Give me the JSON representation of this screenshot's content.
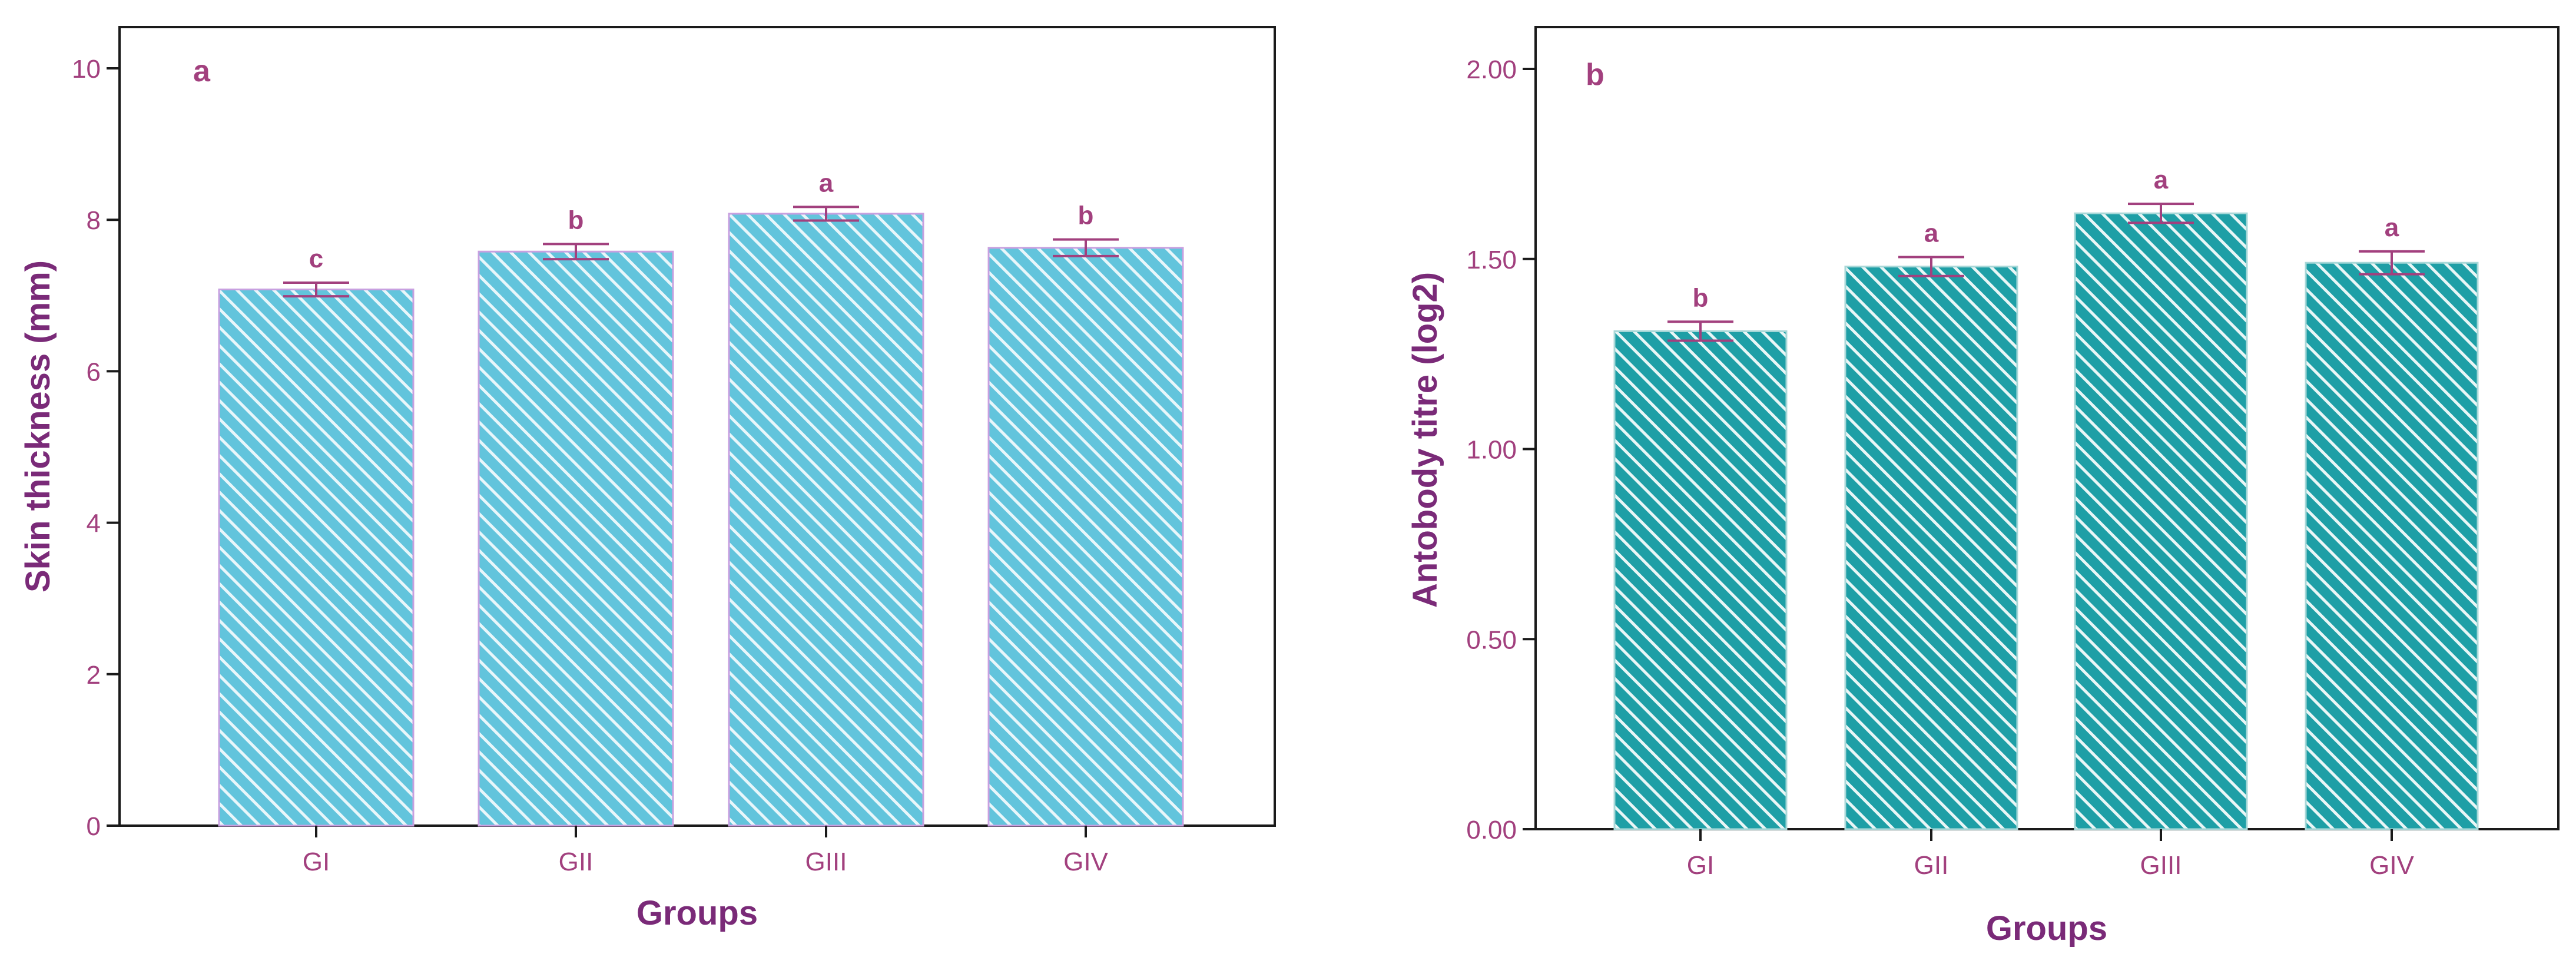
{
  "colors": {
    "text": "#A2407E",
    "axis_title": "#7A2A78",
    "frame": "#1a1a1a",
    "error_bar": "#A2407E"
  },
  "chart_data": [
    {
      "type": "bar",
      "panel_label": "a",
      "categories": [
        "GI",
        "GII",
        "GIII",
        "GIV"
      ],
      "values": [
        7.08,
        7.58,
        8.08,
        7.63
      ],
      "errors": [
        0.09,
        0.1,
        0.09,
        0.11
      ],
      "significance": [
        "c",
        "b",
        "a",
        "b"
      ],
      "xlabel": "Groups",
      "ylabel": "Skin thickness (mm)",
      "ylim": [
        0,
        10
      ],
      "yticks": [
        "0",
        "2",
        "4",
        "6",
        "8",
        "10"
      ],
      "ytick_values": [
        0,
        2,
        4,
        6,
        8,
        10
      ],
      "bar_color": "#62C4DC",
      "bar_stroke": "#C8A0E0",
      "grid": false
    },
    {
      "type": "bar",
      "panel_label": "b",
      "categories": [
        "GI",
        "GII",
        "GIII",
        "GIV"
      ],
      "values": [
        1.31,
        1.48,
        1.62,
        1.49
      ],
      "errors": [
        0.025,
        0.025,
        0.025,
        0.03
      ],
      "significance": [
        "b",
        "a",
        "a",
        "a"
      ],
      "xlabel": "Groups",
      "ylabel": "Antobody titre (log2)",
      "ylim": [
        0,
        2
      ],
      "yticks": [
        "0.00",
        "0.50",
        "1.00",
        "1.50",
        "2.00"
      ],
      "ytick_values": [
        0,
        0.5,
        1.0,
        1.5,
        2.0
      ],
      "bar_color": "#1E9FA6",
      "bar_stroke": "#A8D8D8",
      "grid": false
    }
  ]
}
